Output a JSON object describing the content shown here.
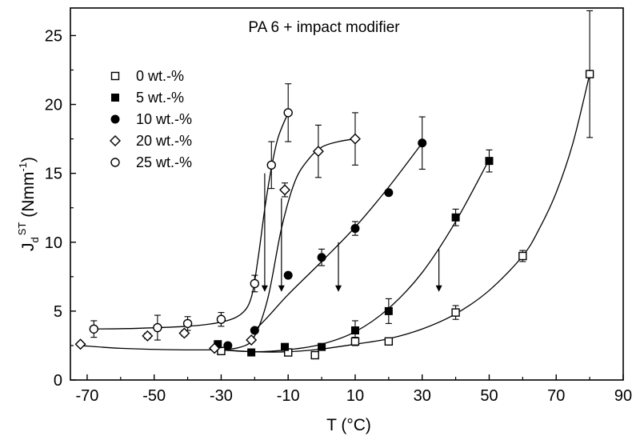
{
  "chart_data": {
    "type": "scatter",
    "title": "PA 6 + impact modifier",
    "xlabel": "T (°C)",
    "ylabel_main": "J",
    "ylabel_sub": "d",
    "ylabel_sup": "ST",
    "ylabel_unit_open": " (Nmm",
    "ylabel_unit_sup": "-1",
    "ylabel_unit_close": ")",
    "xlim": [
      -75,
      90
    ],
    "ylim": [
      0,
      27
    ],
    "x_ticks": [
      -70,
      -50,
      -30,
      -10,
      10,
      30,
      50,
      70,
      90
    ],
    "y_ticks": [
      0,
      5,
      10,
      15,
      20,
      25
    ],
    "x_tick_labels": [
      "-70",
      "-50",
      "-30",
      "-10",
      "10",
      "30",
      "50",
      "70",
      "90"
    ],
    "y_tick_labels": [
      "0",
      "5",
      "10",
      "15",
      "20",
      "25"
    ],
    "legend_position": "top-left",
    "series": [
      {
        "name": "0 wt.-%",
        "marker": "open-square",
        "points": [
          [
            -30,
            2.1
          ],
          [
            -10,
            2.0
          ],
          [
            -2,
            1.8
          ],
          [
            10,
            2.8
          ],
          [
            20,
            2.8
          ],
          [
            40,
            4.9
          ],
          [
            60,
            9.0
          ],
          [
            80,
            22.2
          ]
        ],
        "errors": [
          0,
          0,
          0,
          0.3,
          0,
          0.5,
          0.4,
          4.6
        ],
        "curve": [
          [
            -30,
            2.2
          ],
          [
            -20,
            2.05
          ],
          [
            -10,
            2.05
          ],
          [
            0,
            2.25
          ],
          [
            10,
            2.6
          ],
          [
            20,
            3.0
          ],
          [
            30,
            3.7
          ],
          [
            40,
            4.8
          ],
          [
            50,
            6.5
          ],
          [
            60,
            9.0
          ],
          [
            65,
            11.0
          ],
          [
            70,
            13.6
          ],
          [
            75,
            17.2
          ],
          [
            80,
            22.2
          ]
        ]
      },
      {
        "name": "5 wt.-%",
        "marker": "filled-square",
        "points": [
          [
            -31,
            2.6
          ],
          [
            -21,
            2.0
          ],
          [
            -11,
            2.4
          ],
          [
            0,
            2.4
          ],
          [
            10,
            3.6
          ],
          [
            20,
            5.0
          ],
          [
            40,
            11.8
          ],
          [
            50,
            15.9
          ]
        ],
        "errors": [
          0,
          0,
          0,
          0,
          0.7,
          0.9,
          0.6,
          0.8
        ],
        "curve": [
          [
            -31,
            2.2
          ],
          [
            -20,
            2.05
          ],
          [
            -10,
            2.2
          ],
          [
            0,
            2.6
          ],
          [
            10,
            3.5
          ],
          [
            20,
            5.2
          ],
          [
            30,
            7.8
          ],
          [
            40,
            11.5
          ],
          [
            50,
            16.0
          ]
        ]
      },
      {
        "name": "10 wt.-%",
        "marker": "filled-circle",
        "points": [
          [
            -28,
            2.5
          ],
          [
            -20,
            3.6
          ],
          [
            -10,
            7.6
          ],
          [
            0,
            8.9
          ],
          [
            10,
            11.0
          ],
          [
            20,
            13.6
          ],
          [
            30,
            17.2
          ]
        ],
        "errors": [
          0,
          0,
          0,
          0.6,
          0.5,
          0,
          1.9
        ],
        "curve": [
          [
            -20,
            3.6
          ],
          [
            -16,
            4.6
          ],
          [
            -10,
            6.2
          ],
          [
            0,
            8.6
          ],
          [
            10,
            11.1
          ],
          [
            20,
            14.0
          ],
          [
            30,
            17.2
          ]
        ]
      },
      {
        "name": "20 wt.-%",
        "marker": "open-diamond",
        "points": [
          [
            -72,
            2.6
          ],
          [
            -52,
            3.2
          ],
          [
            -41,
            3.4
          ],
          [
            -32,
            2.3
          ],
          [
            -21,
            2.9
          ],
          [
            -11,
            13.8
          ],
          [
            -1,
            16.6
          ],
          [
            10,
            17.5
          ]
        ],
        "errors": [
          0,
          0.2,
          0.2,
          0,
          0,
          0.5,
          1.9,
          1.9
        ],
        "curve": [
          [
            -72,
            2.5
          ],
          [
            -60,
            2.3
          ],
          [
            -45,
            2.2
          ],
          [
            -32,
            2.2
          ],
          [
            -24,
            2.4
          ],
          [
            -20,
            3.2
          ],
          [
            -16,
            6.0
          ],
          [
            -12,
            11.0
          ],
          [
            -8,
            14.4
          ],
          [
            -4,
            16.0
          ],
          [
            0,
            16.9
          ],
          [
            5,
            17.3
          ],
          [
            10,
            17.5
          ]
        ]
      },
      {
        "name": "25 wt.-%",
        "marker": "open-circle",
        "points": [
          [
            -68,
            3.7
          ],
          [
            -49,
            3.8
          ],
          [
            -40,
            4.1
          ],
          [
            -30,
            4.4
          ],
          [
            -20,
            7.0
          ],
          [
            -15,
            15.6
          ],
          [
            -10,
            19.4
          ]
        ],
        "errors": [
          0.6,
          0.9,
          0.5,
          0.5,
          0.6,
          1.7,
          2.1
        ],
        "curve": [
          [
            -68,
            3.7
          ],
          [
            -55,
            3.75
          ],
          [
            -40,
            3.9
          ],
          [
            -30,
            4.2
          ],
          [
            -24,
            4.8
          ],
          [
            -21,
            6.0
          ],
          [
            -19,
            8.8
          ],
          [
            -17,
            12.4
          ],
          [
            -15,
            15.4
          ],
          [
            -13,
            17.6
          ],
          [
            -10,
            19.4
          ]
        ]
      }
    ],
    "arrows": [
      {
        "x": -17,
        "y_from": 15.0,
        "y_to": 6.4
      },
      {
        "x": -12,
        "y_from": 13.2,
        "y_to": 6.4
      },
      {
        "x": 5,
        "y_from": 10.0,
        "y_to": 6.4
      },
      {
        "x": 35,
        "y_from": 9.5,
        "y_to": 6.4
      }
    ]
  }
}
